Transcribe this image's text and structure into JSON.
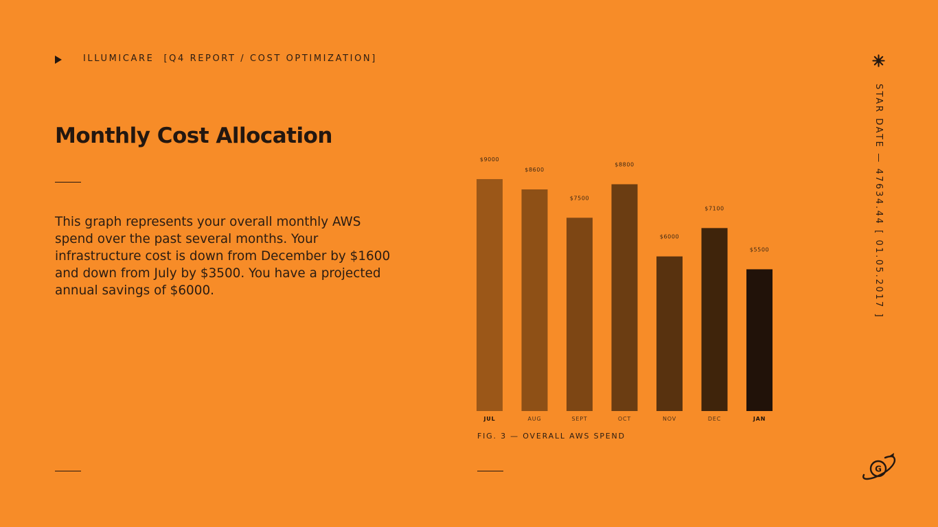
{
  "header": {
    "company": "ILLUMICARE",
    "breadcrumb": "[Q4 REPORT / COST OPTIMIZATION]"
  },
  "page": {
    "title": "Monthly Cost Allocation",
    "description": "This graph represents your overall monthly AWS spend over the past several months. Your infrastructure cost is down from December by $1600 and down from July by $3500. You have a projected annual savings of $6000."
  },
  "sidebar": {
    "stardate": "STAR DATE — 47634.44   [ 01.05.2017 ]"
  },
  "icons": {
    "play": "play-icon",
    "star": "star-burst-icon",
    "logo": "planet-g-logo-icon"
  },
  "colors": {
    "background": "#F78C28",
    "text": "#231710",
    "bars": [
      "#9B5718",
      "#8E5016",
      "#7D4614",
      "#6B3D12",
      "#58320F",
      "#3F240B",
      "#211209"
    ]
  },
  "chart_data": {
    "type": "bar",
    "categories": [
      "JUL",
      "AUG",
      "SEPT",
      "OCT",
      "NOV",
      "DEC",
      "JAN"
    ],
    "values": [
      9000,
      8600,
      7500,
      8800,
      6000,
      7100,
      5500
    ],
    "value_labels": [
      "$9000",
      "$8600",
      "$7500",
      "$8800",
      "$6000",
      "$7100",
      "$5500"
    ],
    "bold_categories": [
      "JUL",
      "JAN"
    ],
    "caption": "FIG. 3 — OVERALL AWS SPEND",
    "ylim": [
      0,
      9000
    ],
    "grid": false,
    "legend": "none"
  }
}
